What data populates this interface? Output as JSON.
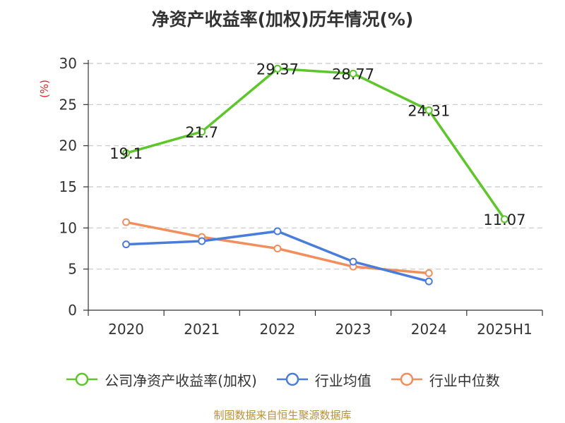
{
  "chart_data": {
    "type": "line",
    "title": "净资产收益率(加权)历年情况(%)",
    "ylabel": "(%)",
    "xlabel": "",
    "categories": [
      "2020",
      "2021",
      "2022",
      "2023",
      "2024",
      "2025H1"
    ],
    "ylim": [
      0,
      30
    ],
    "yticks": [
      0,
      5,
      10,
      15,
      20,
      25,
      30
    ],
    "grid": true,
    "legend_position": "bottom",
    "series": [
      {
        "name": "公司净资产收益率(加权)",
        "color": "#5cc62a",
        "values": [
          19.1,
          21.7,
          29.37,
          28.77,
          24.31,
          11.07
        ],
        "labels": [
          "19.1",
          "21.7",
          "29.37",
          "28.77",
          "24.31",
          "11.07"
        ]
      },
      {
        "name": "行业均值",
        "color": "#4a7ddb",
        "values": [
          8.0,
          8.4,
          9.6,
          5.9,
          3.5,
          null
        ]
      },
      {
        "name": "行业中位数",
        "color": "#f28e5c",
        "values": [
          10.7,
          8.9,
          7.5,
          5.3,
          4.5,
          null
        ]
      }
    ]
  },
  "footer": {
    "source": "制图数据来自恒生聚源数据库"
  }
}
